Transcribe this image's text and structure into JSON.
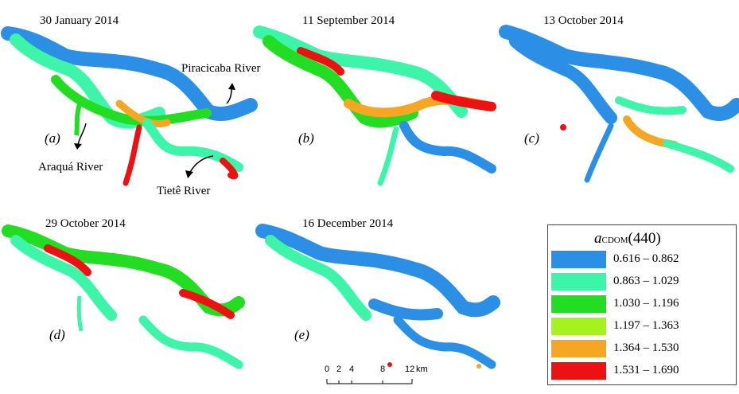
{
  "panels": [
    {
      "date": "30 January 2014",
      "letter": "(a)"
    },
    {
      "date": "11 September 2014",
      "letter": "(b)"
    },
    {
      "date": "13 October 2014",
      "letter": "(c)"
    },
    {
      "date": "29 October 2014",
      "letter": "(d)"
    },
    {
      "date": "16 December 2014",
      "letter": "(e)"
    }
  ],
  "annotations": {
    "piracicaba": "Piracicaba River",
    "araqua": "Araquá River",
    "tiete": "Tietê River"
  },
  "legend": {
    "title_main": "a",
    "title_sub": "CDOM",
    "title_rest": "(440)",
    "classes": [
      {
        "range": "0.616 – 0.862",
        "color": "#2b8fe6"
      },
      {
        "range": "0.863 – 1.029",
        "color": "#3df5a8"
      },
      {
        "range": "1.030 – 1.196",
        "color": "#22dd22"
      },
      {
        "range": "1.197 – 1.363",
        "color": "#a6f21e"
      },
      {
        "range": "1.364 – 1.530",
        "color": "#f5a623"
      },
      {
        "range": "1.531 – 1.690",
        "color": "#ee1111"
      }
    ]
  },
  "scale_bar": {
    "labels": [
      "0",
      "2",
      "4",
      "8",
      "12"
    ],
    "unit": "km"
  }
}
